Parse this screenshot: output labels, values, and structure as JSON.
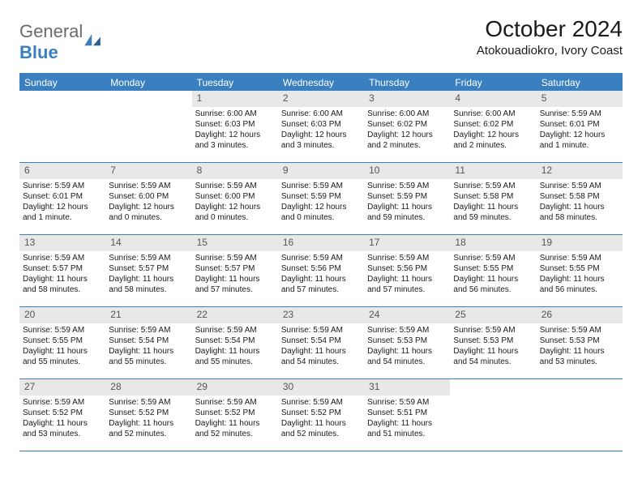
{
  "logo": {
    "general": "General",
    "blue": "Blue"
  },
  "title": "October 2024",
  "location": "Atokouadiokro, Ivory Coast",
  "colors": {
    "accent": "#3a7fbf",
    "daynum_bg": "#e8e8e8",
    "text": "#1a1a1a",
    "logo_gray": "#6b6b6b"
  },
  "weekdays": [
    "Sunday",
    "Monday",
    "Tuesday",
    "Wednesday",
    "Thursday",
    "Friday",
    "Saturday"
  ],
  "weeks": [
    [
      {
        "empty": true
      },
      {
        "empty": true
      },
      {
        "num": "1",
        "sunrise": "Sunrise: 6:00 AM",
        "sunset": "Sunset: 6:03 PM",
        "daylight": "Daylight: 12 hours and 3 minutes."
      },
      {
        "num": "2",
        "sunrise": "Sunrise: 6:00 AM",
        "sunset": "Sunset: 6:03 PM",
        "daylight": "Daylight: 12 hours and 3 minutes."
      },
      {
        "num": "3",
        "sunrise": "Sunrise: 6:00 AM",
        "sunset": "Sunset: 6:02 PM",
        "daylight": "Daylight: 12 hours and 2 minutes."
      },
      {
        "num": "4",
        "sunrise": "Sunrise: 6:00 AM",
        "sunset": "Sunset: 6:02 PM",
        "daylight": "Daylight: 12 hours and 2 minutes."
      },
      {
        "num": "5",
        "sunrise": "Sunrise: 5:59 AM",
        "sunset": "Sunset: 6:01 PM",
        "daylight": "Daylight: 12 hours and 1 minute."
      }
    ],
    [
      {
        "num": "6",
        "sunrise": "Sunrise: 5:59 AM",
        "sunset": "Sunset: 6:01 PM",
        "daylight": "Daylight: 12 hours and 1 minute."
      },
      {
        "num": "7",
        "sunrise": "Sunrise: 5:59 AM",
        "sunset": "Sunset: 6:00 PM",
        "daylight": "Daylight: 12 hours and 0 minutes."
      },
      {
        "num": "8",
        "sunrise": "Sunrise: 5:59 AM",
        "sunset": "Sunset: 6:00 PM",
        "daylight": "Daylight: 12 hours and 0 minutes."
      },
      {
        "num": "9",
        "sunrise": "Sunrise: 5:59 AM",
        "sunset": "Sunset: 5:59 PM",
        "daylight": "Daylight: 12 hours and 0 minutes."
      },
      {
        "num": "10",
        "sunrise": "Sunrise: 5:59 AM",
        "sunset": "Sunset: 5:59 PM",
        "daylight": "Daylight: 11 hours and 59 minutes."
      },
      {
        "num": "11",
        "sunrise": "Sunrise: 5:59 AM",
        "sunset": "Sunset: 5:58 PM",
        "daylight": "Daylight: 11 hours and 59 minutes."
      },
      {
        "num": "12",
        "sunrise": "Sunrise: 5:59 AM",
        "sunset": "Sunset: 5:58 PM",
        "daylight": "Daylight: 11 hours and 58 minutes."
      }
    ],
    [
      {
        "num": "13",
        "sunrise": "Sunrise: 5:59 AM",
        "sunset": "Sunset: 5:57 PM",
        "daylight": "Daylight: 11 hours and 58 minutes."
      },
      {
        "num": "14",
        "sunrise": "Sunrise: 5:59 AM",
        "sunset": "Sunset: 5:57 PM",
        "daylight": "Daylight: 11 hours and 58 minutes."
      },
      {
        "num": "15",
        "sunrise": "Sunrise: 5:59 AM",
        "sunset": "Sunset: 5:57 PM",
        "daylight": "Daylight: 11 hours and 57 minutes."
      },
      {
        "num": "16",
        "sunrise": "Sunrise: 5:59 AM",
        "sunset": "Sunset: 5:56 PM",
        "daylight": "Daylight: 11 hours and 57 minutes."
      },
      {
        "num": "17",
        "sunrise": "Sunrise: 5:59 AM",
        "sunset": "Sunset: 5:56 PM",
        "daylight": "Daylight: 11 hours and 57 minutes."
      },
      {
        "num": "18",
        "sunrise": "Sunrise: 5:59 AM",
        "sunset": "Sunset: 5:55 PM",
        "daylight": "Daylight: 11 hours and 56 minutes."
      },
      {
        "num": "19",
        "sunrise": "Sunrise: 5:59 AM",
        "sunset": "Sunset: 5:55 PM",
        "daylight": "Daylight: 11 hours and 56 minutes."
      }
    ],
    [
      {
        "num": "20",
        "sunrise": "Sunrise: 5:59 AM",
        "sunset": "Sunset: 5:55 PM",
        "daylight": "Daylight: 11 hours and 55 minutes."
      },
      {
        "num": "21",
        "sunrise": "Sunrise: 5:59 AM",
        "sunset": "Sunset: 5:54 PM",
        "daylight": "Daylight: 11 hours and 55 minutes."
      },
      {
        "num": "22",
        "sunrise": "Sunrise: 5:59 AM",
        "sunset": "Sunset: 5:54 PM",
        "daylight": "Daylight: 11 hours and 55 minutes."
      },
      {
        "num": "23",
        "sunrise": "Sunrise: 5:59 AM",
        "sunset": "Sunset: 5:54 PM",
        "daylight": "Daylight: 11 hours and 54 minutes."
      },
      {
        "num": "24",
        "sunrise": "Sunrise: 5:59 AM",
        "sunset": "Sunset: 5:53 PM",
        "daylight": "Daylight: 11 hours and 54 minutes."
      },
      {
        "num": "25",
        "sunrise": "Sunrise: 5:59 AM",
        "sunset": "Sunset: 5:53 PM",
        "daylight": "Daylight: 11 hours and 54 minutes."
      },
      {
        "num": "26",
        "sunrise": "Sunrise: 5:59 AM",
        "sunset": "Sunset: 5:53 PM",
        "daylight": "Daylight: 11 hours and 53 minutes."
      }
    ],
    [
      {
        "num": "27",
        "sunrise": "Sunrise: 5:59 AM",
        "sunset": "Sunset: 5:52 PM",
        "daylight": "Daylight: 11 hours and 53 minutes."
      },
      {
        "num": "28",
        "sunrise": "Sunrise: 5:59 AM",
        "sunset": "Sunset: 5:52 PM",
        "daylight": "Daylight: 11 hours and 52 minutes."
      },
      {
        "num": "29",
        "sunrise": "Sunrise: 5:59 AM",
        "sunset": "Sunset: 5:52 PM",
        "daylight": "Daylight: 11 hours and 52 minutes."
      },
      {
        "num": "30",
        "sunrise": "Sunrise: 5:59 AM",
        "sunset": "Sunset: 5:52 PM",
        "daylight": "Daylight: 11 hours and 52 minutes."
      },
      {
        "num": "31",
        "sunrise": "Sunrise: 5:59 AM",
        "sunset": "Sunset: 5:51 PM",
        "daylight": "Daylight: 11 hours and 51 minutes."
      },
      {
        "empty": true
      },
      {
        "empty": true
      }
    ]
  ]
}
